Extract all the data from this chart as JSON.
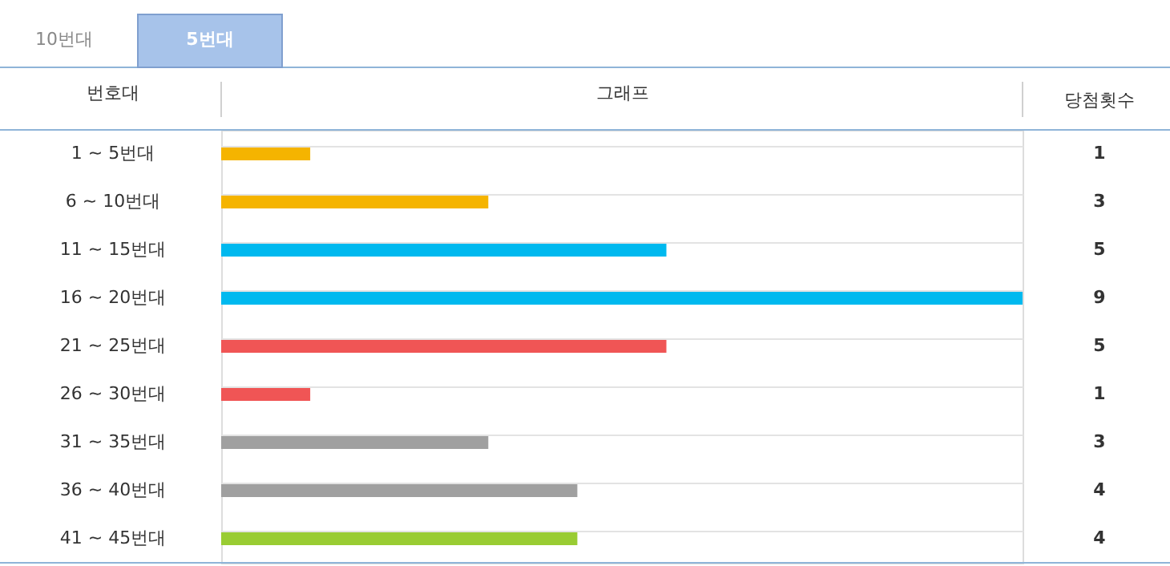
{
  "chart_data": {
    "type": "bar",
    "orientation": "horizontal",
    "xlabel": "그래프",
    "ylabel": "번호대",
    "y2label": "당첨횟수",
    "categories": [
      "1 ~ 5번대",
      "6 ~ 10번대",
      "11 ~ 15번대",
      "16 ~ 20번대",
      "21 ~ 25번대",
      "26 ~ 30번대",
      "31 ~ 35번대",
      "36 ~ 40번대",
      "41 ~ 45번대"
    ],
    "values": [
      1,
      3,
      5,
      9,
      5,
      1,
      3,
      4,
      4
    ],
    "colors": [
      "#f5b400",
      "#f5b400",
      "#00b9ef",
      "#00b9ef",
      "#f05555",
      "#f05555",
      "#a0a0a0",
      "#a0a0a0",
      "#99cc33"
    ],
    "data_labels": true,
    "grid": "y",
    "legend": false,
    "annotations": [
      "10번대",
      "5번대"
    ]
  }
}
